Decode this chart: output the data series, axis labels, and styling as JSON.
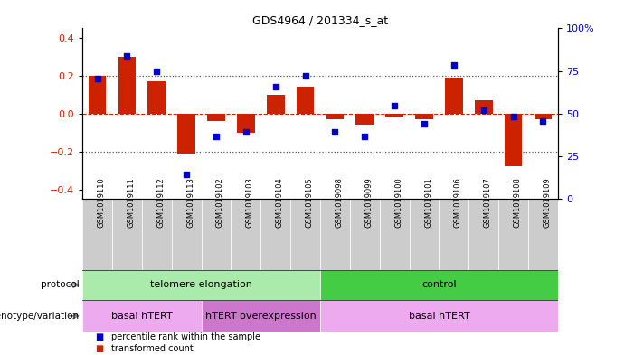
{
  "title": "GDS4964 / 201334_s_at",
  "samples": [
    "GSM1019110",
    "GSM1019111",
    "GSM1019112",
    "GSM1019113",
    "GSM1019102",
    "GSM1019103",
    "GSM1019104",
    "GSM1019105",
    "GSM1019098",
    "GSM1019099",
    "GSM1019100",
    "GSM1019101",
    "GSM1019106",
    "GSM1019107",
    "GSM1019108",
    "GSM1019109"
  ],
  "bar_values": [
    0.2,
    0.3,
    0.17,
    -0.21,
    -0.04,
    -0.1,
    0.1,
    0.14,
    -0.03,
    -0.06,
    -0.02,
    -0.03,
    0.19,
    0.07,
    -0.28,
    -0.03
  ],
  "dot_values": [
    73,
    88,
    78,
    10,
    35,
    38,
    68,
    75,
    38,
    35,
    55,
    43,
    82,
    52,
    48,
    45
  ],
  "bar_color": "#cc2200",
  "dot_color": "#0000cc",
  "ylim": [
    -0.45,
    0.45
  ],
  "y_left_ticks": [
    -0.4,
    -0.2,
    0.0,
    0.2,
    0.4
  ],
  "y_right_ticks": [
    0,
    25,
    50,
    75,
    100
  ],
  "y_right_labels": [
    "0",
    "25",
    "50",
    "75",
    "100%"
  ],
  "hline_zero_color": "#cc2200",
  "hline_dotted_color": "#555555",
  "protocol_groups": [
    {
      "label": "telomere elongation",
      "start": 0,
      "end": 7,
      "color": "#aaeaaa"
    },
    {
      "label": "control",
      "start": 8,
      "end": 15,
      "color": "#44cc44"
    }
  ],
  "genotype_groups": [
    {
      "label": "basal hTERT",
      "start": 0,
      "end": 3,
      "color": "#eeaaee"
    },
    {
      "label": "hTERT overexpression",
      "start": 4,
      "end": 7,
      "color": "#cc77cc"
    },
    {
      "label": "basal hTERT",
      "start": 8,
      "end": 15,
      "color": "#eeaaee"
    }
  ],
  "legend_items": [
    {
      "label": "transformed count",
      "color": "#cc2200"
    },
    {
      "label": "percentile rank within the sample",
      "color": "#0000cc"
    }
  ],
  "protocol_label": "protocol",
  "genotype_label": "genotype/variation",
  "tick_bg_color": "#cccccc",
  "bg_color": "#ffffff"
}
